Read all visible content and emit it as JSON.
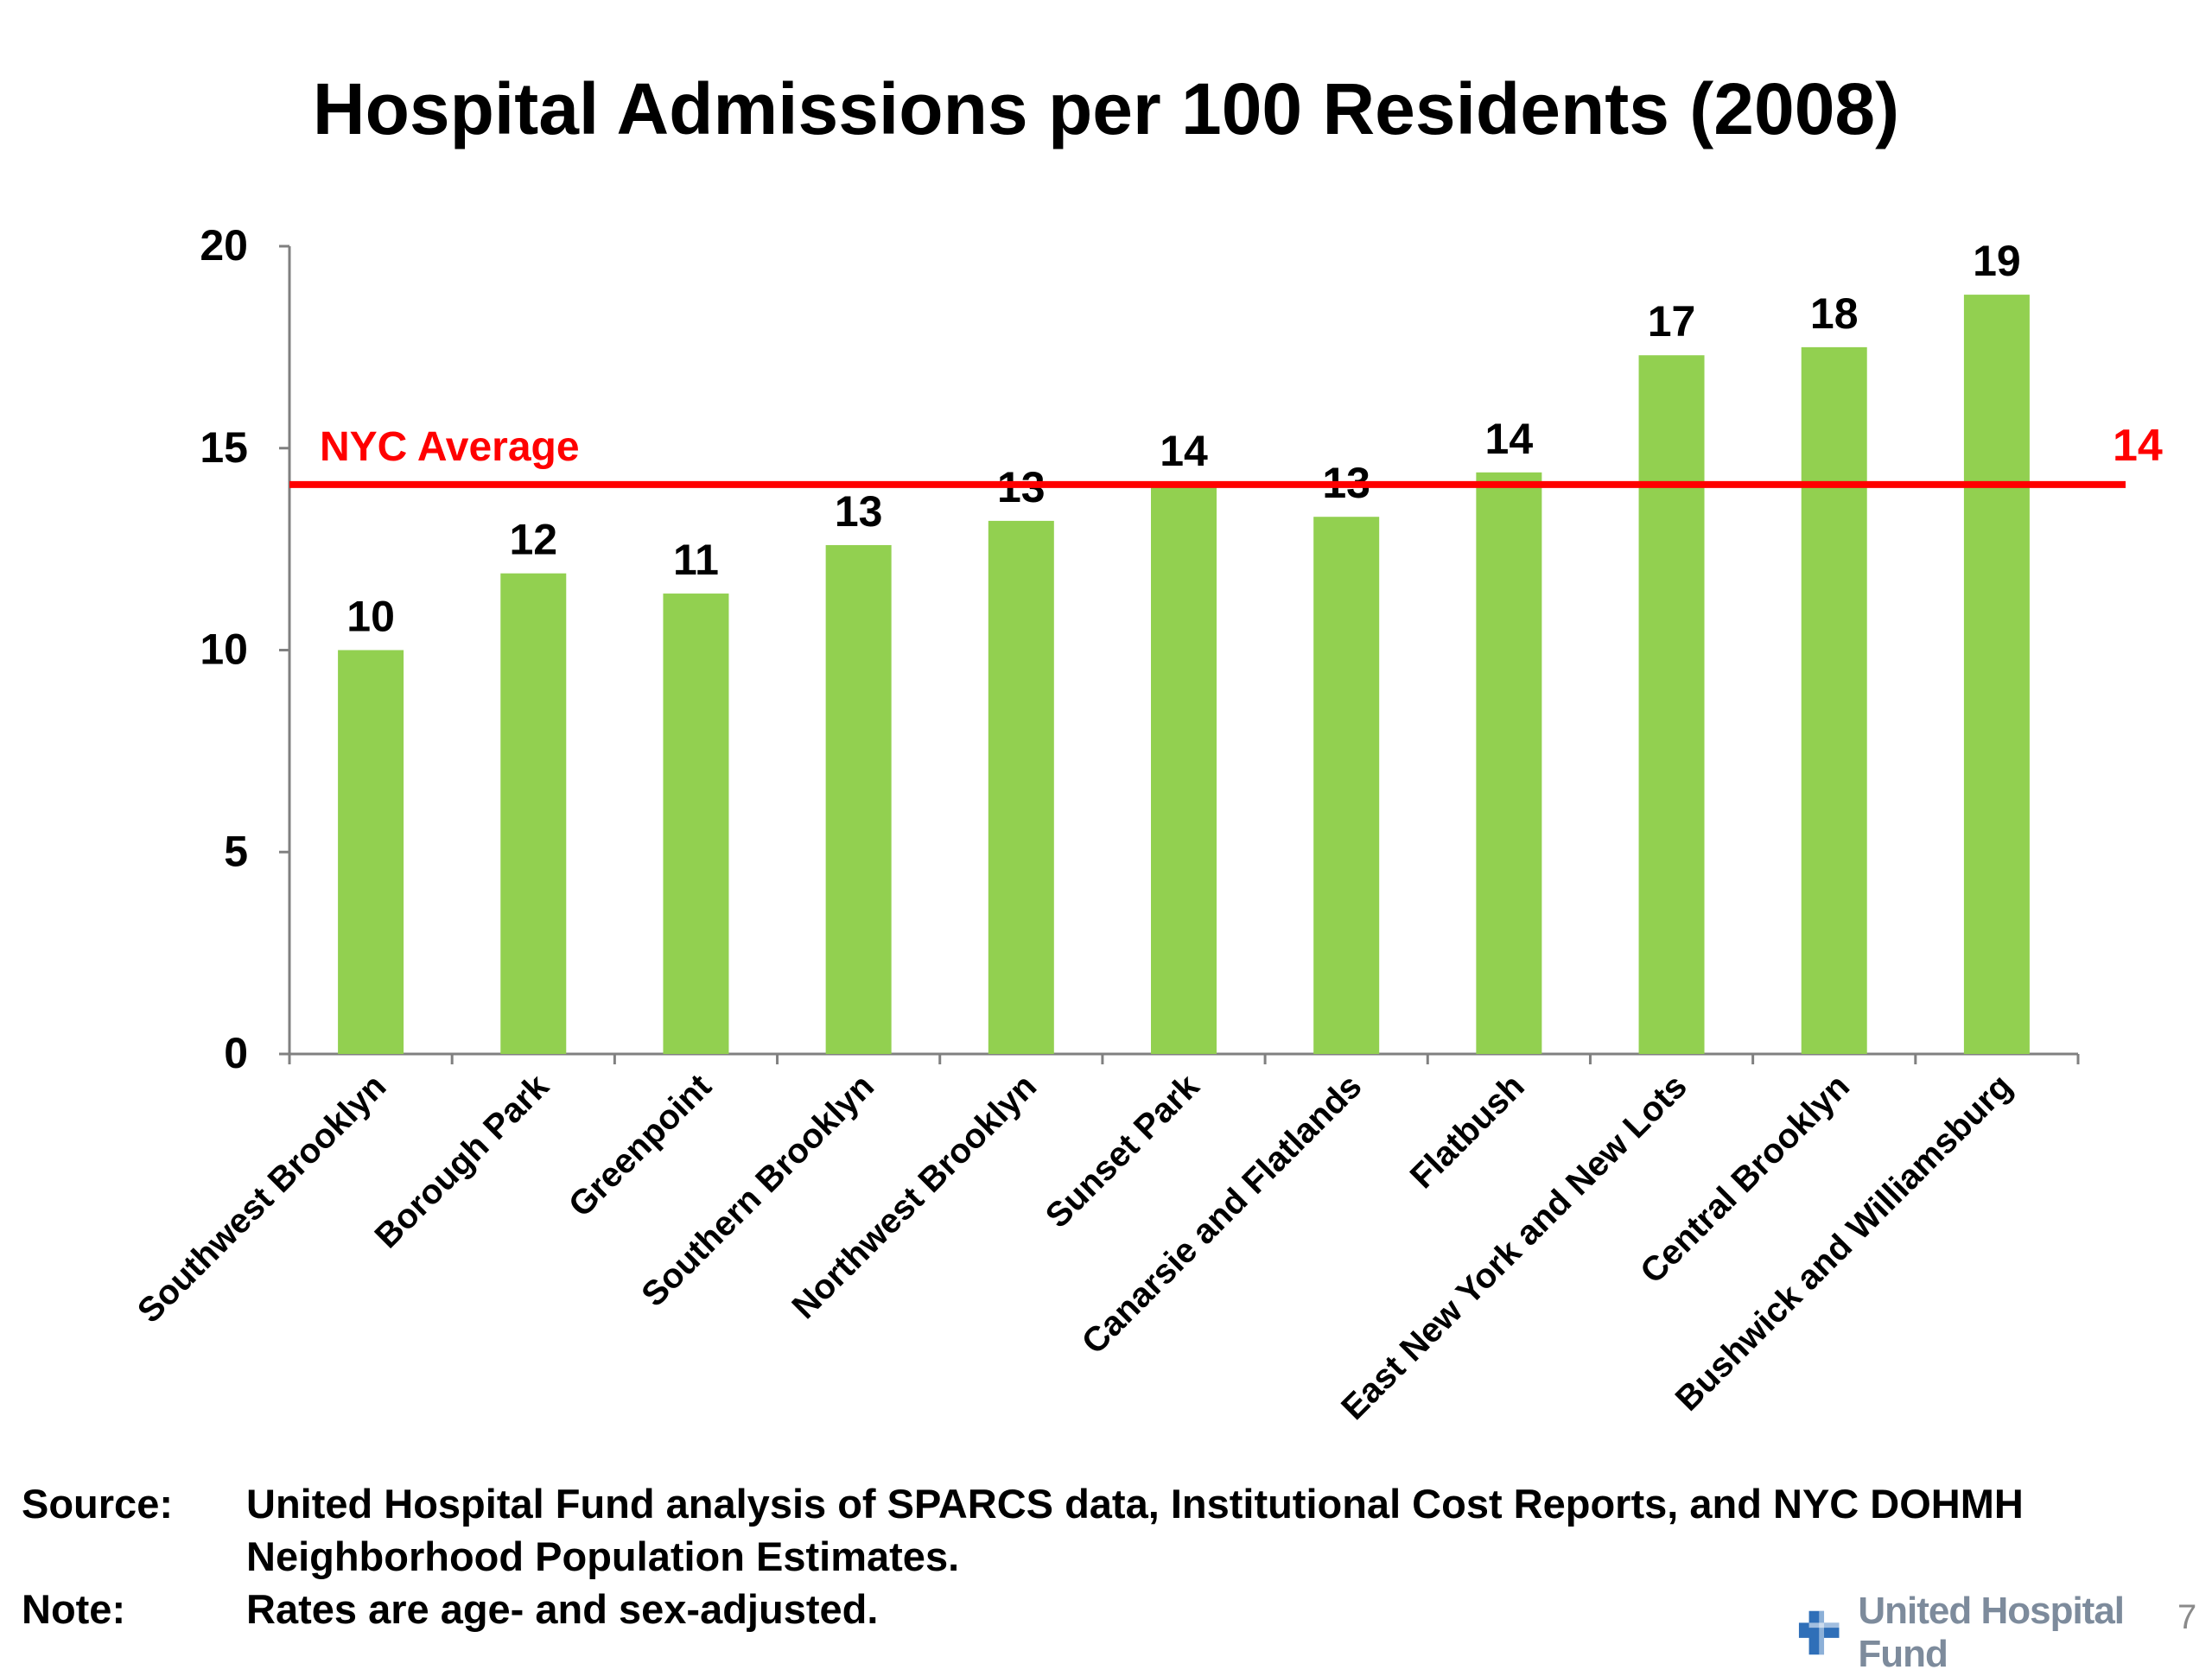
{
  "chart_data": {
    "type": "bar",
    "title": "Hospital Admissions per 100 Residents (2008)",
    "xlabel": "",
    "ylabel": "",
    "ylim": [
      0,
      20
    ],
    "yticks": [
      "0",
      "5",
      "10",
      "15",
      "20"
    ],
    "categories": [
      "Southwest Brooklyn",
      "Borough Park",
      "Greenpoint",
      "Southern Brooklyn",
      "Northwest Brooklyn",
      "Sunset Park",
      "Canarsie and Flatlands",
      "Flatbush",
      "East New York and New Lots",
      "Central Brooklyn",
      "Bushwick and Williamsburg"
    ],
    "values": [
      10.0,
      11.9,
      11.4,
      12.6,
      13.2,
      14.1,
      13.3,
      14.4,
      17.3,
      17.5,
      18.8
    ],
    "data_labels": [
      "10",
      "12",
      "11",
      "13",
      "13",
      "14",
      "13",
      "14",
      "17",
      "18",
      "19"
    ],
    "bar_color": "#92d050",
    "grid": false,
    "reference_line": {
      "label": "NYC Average",
      "value": 14.1,
      "value_label": "14",
      "color": "#ff0000"
    }
  },
  "footer": {
    "source_label": "Source:",
    "source_text": "United Hospital Fund analysis of SPARCS data, Institutional Cost Reports, and NYC DOHMH Neighborhood Population Estimates.",
    "note_label": "Note:",
    "note_text": "Rates are age- and sex-adjusted."
  },
  "logo": {
    "text": "United Hospital Fund",
    "icon": "hospital-cross-icon",
    "color": "#2f6fb8"
  },
  "page_number": "7"
}
